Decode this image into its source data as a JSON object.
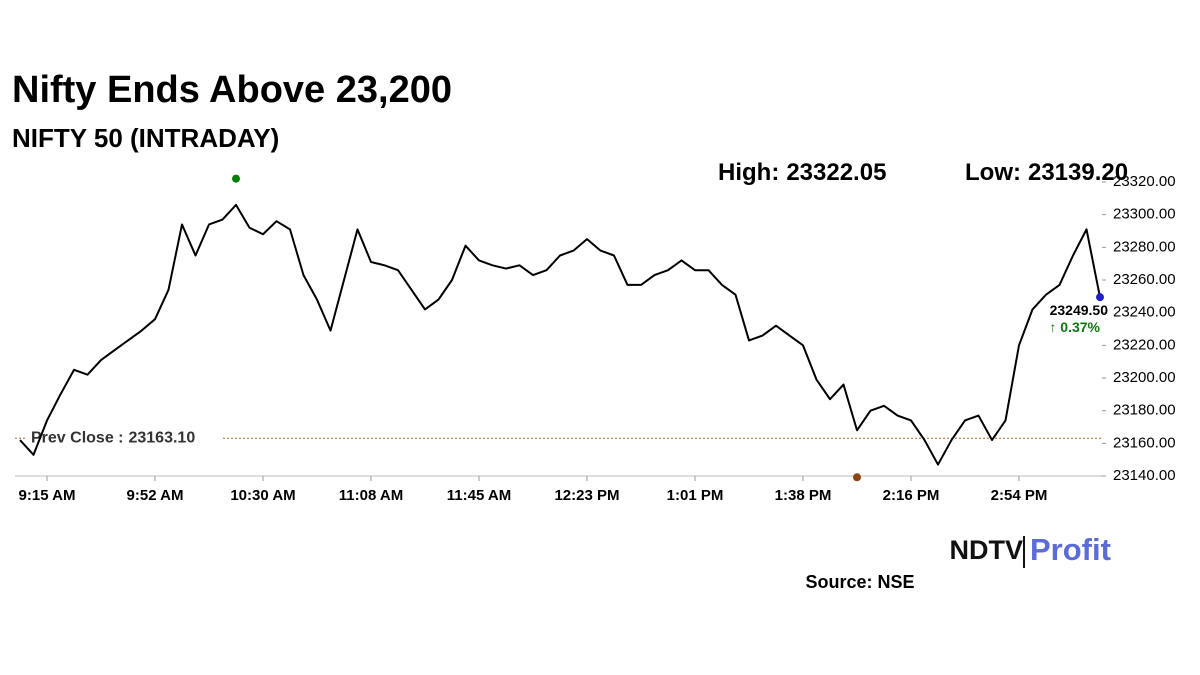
{
  "chart_data": {
    "type": "line",
    "title": "Nifty Ends Above 23,200",
    "subtitle": "NIFTY 50 (INTRADAY)",
    "categories": [
      null,
      null,
      "9:15 AM",
      null,
      null,
      null,
      null,
      null,
      null,
      null,
      "9:52 AM",
      null,
      null,
      null,
      null,
      null,
      null,
      null,
      "10:30 AM",
      null,
      null,
      null,
      null,
      null,
      null,
      null,
      "11:08 AM",
      null,
      null,
      null,
      null,
      null,
      null,
      null,
      "11:45 AM",
      null,
      null,
      null,
      null,
      null,
      null,
      null,
      "12:23 PM",
      null,
      null,
      null,
      null,
      null,
      null,
      null,
      "1:01 PM",
      null,
      null,
      null,
      null,
      null,
      null,
      null,
      "1:38 PM",
      null,
      null,
      null,
      null,
      null,
      null,
      null,
      "2:16 PM",
      null,
      null,
      null,
      null,
      null,
      null,
      null,
      "2:54 PM",
      null,
      null,
      null,
      null,
      null,
      null
    ],
    "series": [
      {
        "name": "NIFTY 50",
        "color": "#000000",
        "values": [
          23162,
          23153,
          23174,
          23190,
          23205,
          23202,
          23211,
          23217,
          23223,
          23229,
          23236,
          23254,
          23294,
          23275,
          23294,
          23297,
          23306,
          23292,
          23288,
          23296,
          23291,
          23263,
          23248,
          23229,
          23260,
          23291,
          23271,
          23269,
          23266,
          23254,
          23242,
          23248,
          23260,
          23281,
          23272,
          23269,
          23267,
          23269,
          23263,
          23266,
          23275,
          23278,
          23285,
          23278,
          23275,
          23257,
          23257,
          23263,
          23266,
          23272,
          23266,
          23266,
          23257,
          23251,
          23223,
          23226,
          23232,
          23226,
          23220,
          23199,
          23187,
          23196,
          23168,
          23180,
          23183,
          23177,
          23174,
          23162,
          23147,
          23162,
          23174,
          23177,
          23162,
          23174,
          23220,
          23242,
          23251,
          23257,
          23275,
          23291,
          23249.5
        ]
      }
    ],
    "ylim": [
      23140,
      23320
    ],
    "yticks": [
      {
        "value": 23140,
        "label": "23140.00"
      },
      {
        "value": 23160,
        "label": "23160.00"
      },
      {
        "value": 23180,
        "label": "23180.00"
      },
      {
        "value": 23200,
        "label": "23200.00"
      },
      {
        "value": 23220,
        "label": "23220.00"
      },
      {
        "value": 23240,
        "label": "23240.00"
      },
      {
        "value": 23260,
        "label": "23260.00"
      },
      {
        "value": 23280,
        "label": "23280.00"
      },
      {
        "value": 23300,
        "label": "23300.00"
      },
      {
        "value": 23320,
        "label": "23320.00"
      }
    ],
    "high": {
      "text": "High:",
      "value": 23322.05,
      "value_label": "23322.05",
      "index": 16,
      "color": "#008000"
    },
    "low": {
      "text": "Low:",
      "value": 23139.2,
      "value_label": "23139.20",
      "index": 62,
      "color": "#8b4513"
    },
    "prev_close": {
      "text": "Prev Close :",
      "value": 23163.1,
      "value_label": "23163.10",
      "color": "#b5651d"
    },
    "last": {
      "value": 23249.5,
      "value_label": "23249.50",
      "change_label": "↑ 0.37%",
      "color": "#1f1fcc"
    },
    "logo": {
      "left": "NDTV",
      "right": "Profit"
    },
    "source": "Source: NSE"
  }
}
